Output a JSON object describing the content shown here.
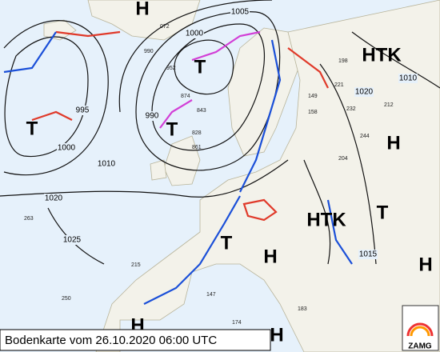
{
  "title": "Bodenkarte vom 26.10.2020 06:00 UTC",
  "logo": "ZAMG",
  "pressure_systems": [
    "H",
    "T",
    "T",
    "T",
    "H",
    "HTK",
    "HTK",
    "T",
    "T",
    "H",
    "H",
    "H",
    "H"
  ],
  "isobar_labels": [
    "1005",
    "1000",
    "995",
    "990",
    "1000",
    "1010",
    "1020",
    "1025",
    "1015",
    "1010",
    "1020"
  ],
  "station_values": [
    "072",
    "990",
    "952",
    "874",
    "843",
    "828",
    "861",
    "232",
    "212",
    "244",
    "204",
    "149",
    "158",
    "250",
    "215",
    "174",
    "147",
    "183",
    "198",
    "221",
    "263"
  ]
}
